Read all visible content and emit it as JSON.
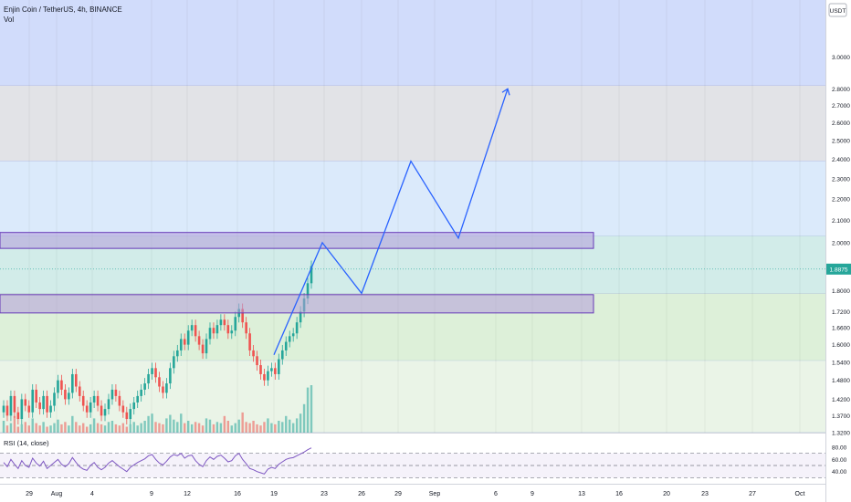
{
  "header": {
    "title": "Enjin Coin / TetherUS, 4h, BINANCE",
    "volume_label": "Vol"
  },
  "price_axis": {
    "currency_label": "USDT",
    "current_price": "1.8875",
    "current_price_color": "#26a69a"
  },
  "rsi": {
    "label": "RSI (14, close)",
    "tick_labels": [
      "80.00",
      "60.00",
      "40.00"
    ]
  },
  "colors": {
    "up_candle": "#26a69a",
    "down_candle": "#ef5350",
    "projection_line": "#2962ff",
    "zone_outline": "#673ab7",
    "rsi_line": "#7e57c2"
  },
  "chart_data": {
    "type": "candlestick",
    "symbol": "Enjin Coin / TetherUS",
    "interval": "4h",
    "exchange": "BINANCE",
    "y_scale": "log",
    "ylim": [
      1.32,
      3.4
    ],
    "y_tick_labels": [
      "3.0000",
      "2.8000",
      "2.7000",
      "2.6000",
      "2.5000",
      "2.4000",
      "2.3000",
      "2.2000",
      "2.1000",
      "2.0000",
      "1.8000",
      "1.7200",
      "1.6600",
      "1.6000",
      "1.5400",
      "1.4800",
      "1.4200",
      "1.3700",
      "1.3200"
    ],
    "x_tick_labels": [
      "29",
      "Aug",
      "4",
      "9",
      "12",
      "16",
      "19",
      "23",
      "26",
      "29",
      "Sep",
      "6",
      "9",
      "13",
      "16",
      "20",
      "23",
      "27",
      "Oct"
    ],
    "last_price": 1.8875,
    "shaded_zones": [
      {
        "low": 2.82,
        "high": 3.4,
        "color": "#d1dcfb"
      },
      {
        "low": 2.39,
        "high": 2.82,
        "color": "#e2e3e7"
      },
      {
        "low": 2.03,
        "high": 2.39,
        "color": "#dbeafb"
      },
      {
        "low": 1.79,
        "high": 2.03,
        "color": "#d2ece9"
      },
      {
        "low": 1.545,
        "high": 1.79,
        "color": "#ddf0d9"
      },
      {
        "low": 1.32,
        "high": 1.545,
        "color": "#eaf4e7"
      }
    ],
    "rectangles": [
      {
        "low": 1.975,
        "high": 2.045
      },
      {
        "low": 1.715,
        "high": 1.785
      }
    ],
    "projection_path_prices": [
      1.565,
      2.0,
      1.79,
      2.39,
      2.02,
      2.8
    ]
  }
}
